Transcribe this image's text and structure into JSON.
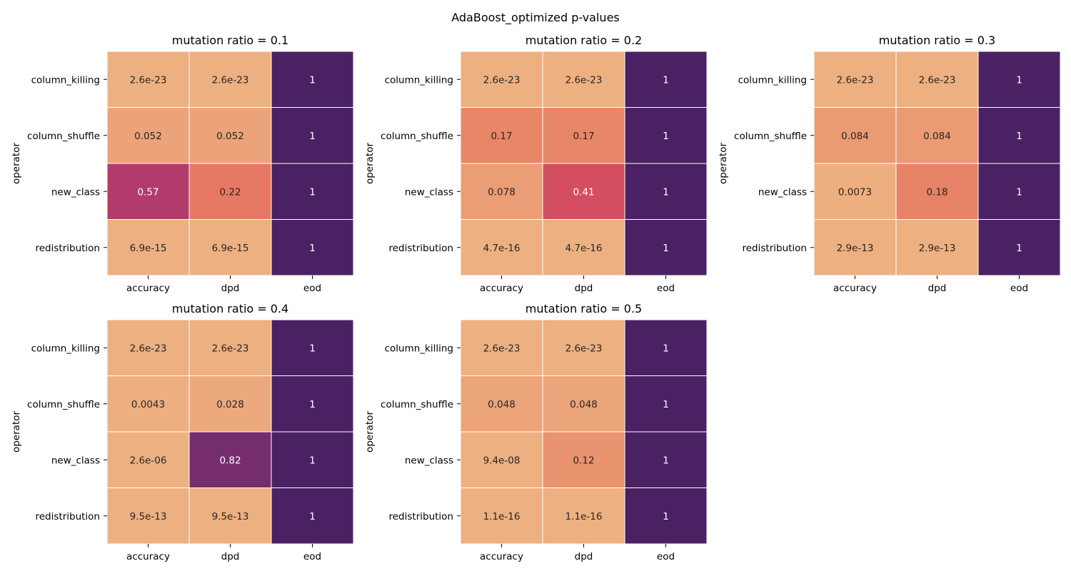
{
  "figure_title": "AdaBoost_optimized p-values",
  "colormap": {
    "name": "flare",
    "note": "0 = light peach, 1 = dark purple",
    "stops": [
      "#edb081",
      "#e98d6b",
      "#e3685c",
      "#d14a61",
      "#b13c6c",
      "#8f3371",
      "#6c2b6d",
      "#4a2263"
    ]
  },
  "chart_data": [
    {
      "type": "heatmap",
      "title": "mutation ratio = 0.1",
      "ylabel": "operator",
      "xlabel": "",
      "rows": [
        "column_killing",
        "column_shuffle",
        "new_class",
        "redistribution"
      ],
      "cols": [
        "accuracy",
        "dpd",
        "eod"
      ],
      "values": [
        [
          2.6e-23,
          2.6e-23,
          1
        ],
        [
          0.052,
          0.052,
          1
        ],
        [
          0.57,
          0.22,
          1
        ],
        [
          6.9e-15,
          6.9e-15,
          1
        ]
      ],
      "labels": [
        [
          "2.6e-23",
          "2.6e-23",
          "1"
        ],
        [
          "0.052",
          "0.052",
          "1"
        ],
        [
          "0.57",
          "0.22",
          "1"
        ],
        [
          "6.9e-15",
          "6.9e-15",
          "1"
        ]
      ]
    },
    {
      "type": "heatmap",
      "title": "mutation ratio = 0.2",
      "ylabel": "operator",
      "xlabel": "",
      "rows": [
        "column_killing",
        "column_shuffle",
        "new_class",
        "redistribution"
      ],
      "cols": [
        "accuracy",
        "dpd",
        "eod"
      ],
      "values": [
        [
          2.6e-23,
          2.6e-23,
          1
        ],
        [
          0.17,
          0.17,
          1
        ],
        [
          0.078,
          0.41,
          1
        ],
        [
          4.7e-16,
          4.7e-16,
          1
        ]
      ],
      "labels": [
        [
          "2.6e-23",
          "2.6e-23",
          "1"
        ],
        [
          "0.17",
          "0.17",
          "1"
        ],
        [
          "0.078",
          "0.41",
          "1"
        ],
        [
          "4.7e-16",
          "4.7e-16",
          "1"
        ]
      ]
    },
    {
      "type": "heatmap",
      "title": "mutation ratio = 0.3",
      "ylabel": "operator",
      "xlabel": "",
      "rows": [
        "column_killing",
        "column_shuffle",
        "new_class",
        "redistribution"
      ],
      "cols": [
        "accuracy",
        "dpd",
        "eod"
      ],
      "values": [
        [
          2.6e-23,
          2.6e-23,
          1
        ],
        [
          0.084,
          0.084,
          1
        ],
        [
          0.0073,
          0.18,
          1
        ],
        [
          2.9e-13,
          2.9e-13,
          1
        ]
      ],
      "labels": [
        [
          "2.6e-23",
          "2.6e-23",
          "1"
        ],
        [
          "0.084",
          "0.084",
          "1"
        ],
        [
          "0.0073",
          "0.18",
          "1"
        ],
        [
          "2.9e-13",
          "2.9e-13",
          "1"
        ]
      ]
    },
    {
      "type": "heatmap",
      "title": "mutation ratio = 0.4",
      "ylabel": "operator",
      "xlabel": "",
      "rows": [
        "column_killing",
        "column_shuffle",
        "new_class",
        "redistribution"
      ],
      "cols": [
        "accuracy",
        "dpd",
        "eod"
      ],
      "values": [
        [
          2.6e-23,
          2.6e-23,
          1
        ],
        [
          0.0043,
          0.028,
          1
        ],
        [
          2.6e-06,
          0.82,
          1
        ],
        [
          9.5e-13,
          9.5e-13,
          1
        ]
      ],
      "labels": [
        [
          "2.6e-23",
          "2.6e-23",
          "1"
        ],
        [
          "0.0043",
          "0.028",
          "1"
        ],
        [
          "2.6e-06",
          "0.82",
          "1"
        ],
        [
          "9.5e-13",
          "9.5e-13",
          "1"
        ]
      ]
    },
    {
      "type": "heatmap",
      "title": "mutation ratio = 0.5",
      "ylabel": "operator",
      "xlabel": "",
      "rows": [
        "column_killing",
        "column_shuffle",
        "new_class",
        "redistribution"
      ],
      "cols": [
        "accuracy",
        "dpd",
        "eod"
      ],
      "values": [
        [
          2.6e-23,
          2.6e-23,
          1
        ],
        [
          0.048,
          0.048,
          1
        ],
        [
          9.4e-08,
          0.12,
          1
        ],
        [
          1.1e-16,
          1.1e-16,
          1
        ]
      ],
      "labels": [
        [
          "2.6e-23",
          "2.6e-23",
          "1"
        ],
        [
          "0.048",
          "0.048",
          "1"
        ],
        [
          "9.4e-08",
          "0.12",
          "1"
        ],
        [
          "1.1e-16",
          "1.1e-16",
          "1"
        ]
      ]
    }
  ]
}
